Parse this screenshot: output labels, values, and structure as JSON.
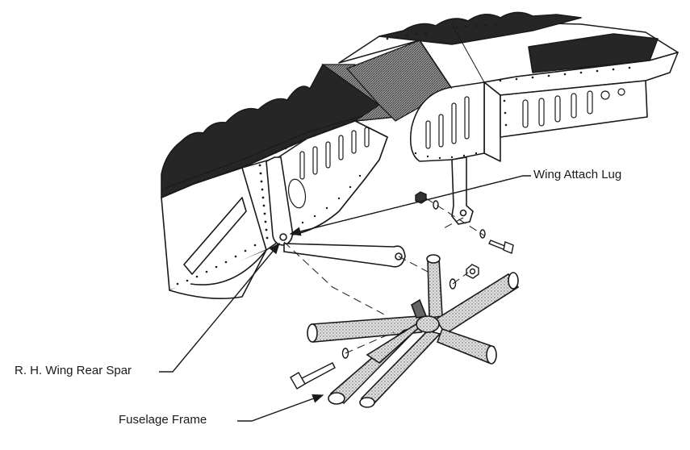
{
  "callouts": {
    "wing_attach_lug": "Wing Attach Lug",
    "rh_wing_rear_spar": "R. H. Wing Rear Spar",
    "fuselage_frame": "Fuselage Frame"
  },
  "colors": {
    "ink": "#1a1a1a",
    "skin_dark": "#2a2a2a",
    "tube_fill": "#d4d4d4",
    "paper": "#ffffff"
  },
  "icons": [
    "arrow-pointer-icon",
    "bolt-icon",
    "nut-icon",
    "washer-icon"
  ]
}
